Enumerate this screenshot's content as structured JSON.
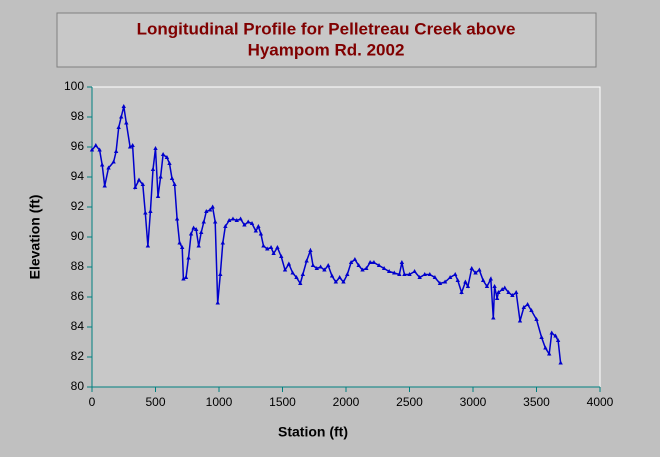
{
  "chart_data": {
    "type": "line",
    "title": [
      "Longitudinal Profile for Pelletreau Creek above",
      "Hyampom Rd. 2002"
    ],
    "x_label": "Station (ft)",
    "y_label": "Elevation (ft)",
    "xlim": [
      0,
      4000
    ],
    "xticks": [
      0,
      500,
      1000,
      1500,
      2000,
      2500,
      3000,
      3500,
      4000
    ],
    "ylim": [
      80,
      100
    ],
    "yticks": [
      80,
      82,
      84,
      86,
      88,
      90,
      92,
      94,
      96,
      98,
      100
    ],
    "grid": false,
    "series": [
      {
        "color": "#0000cc",
        "x": [
          0,
          30,
          60,
          80,
          100,
          130,
          170,
          190,
          210,
          230,
          250,
          270,
          300,
          320,
          340,
          370,
          400,
          420,
          440,
          460,
          480,
          500,
          520,
          540,
          560,
          590,
          610,
          630,
          650,
          670,
          690,
          710,
          720,
          740,
          760,
          780,
          800,
          820,
          840,
          860,
          880,
          900,
          930,
          950,
          970,
          990,
          1010,
          1030,
          1050,
          1080,
          1110,
          1140,
          1170,
          1200,
          1230,
          1260,
          1290,
          1310,
          1330,
          1350,
          1380,
          1410,
          1430,
          1460,
          1490,
          1520,
          1550,
          1580,
          1610,
          1640,
          1660,
          1690,
          1720,
          1740,
          1770,
          1800,
          1830,
          1860,
          1890,
          1920,
          1950,
          1980,
          2010,
          2040,
          2070,
          2100,
          2130,
          2160,
          2190,
          2220,
          2260,
          2300,
          2340,
          2380,
          2420,
          2440,
          2460,
          2500,
          2540,
          2580,
          2620,
          2660,
          2700,
          2740,
          2780,
          2820,
          2860,
          2880,
          2910,
          2940,
          2960,
          2990,
          3020,
          3050,
          3080,
          3110,
          3140,
          3160,
          3170,
          3190,
          3200,
          3230,
          3250,
          3280,
          3310,
          3340,
          3370,
          3400,
          3430,
          3460,
          3500,
          3540,
          3570,
          3600,
          3620,
          3650,
          3670,
          3690
        ],
        "values": [
          95.8,
          96.1,
          95.8,
          94.8,
          93.4,
          94.6,
          95.0,
          95.7,
          97.3,
          98.0,
          98.7,
          97.6,
          96.0,
          96.1,
          93.3,
          93.8,
          93.5,
          91.6,
          89.4,
          91.7,
          94.5,
          95.9,
          92.7,
          94.0,
          95.5,
          95.3,
          94.9,
          93.9,
          93.5,
          91.2,
          89.6,
          89.3,
          87.2,
          87.3,
          88.6,
          90.2,
          90.6,
          90.5,
          89.4,
          90.3,
          91.0,
          91.7,
          91.8,
          92.0,
          91.0,
          85.6,
          87.5,
          89.6,
          90.7,
          91.1,
          91.2,
          91.1,
          91.2,
          90.8,
          91.0,
          90.9,
          90.4,
          90.7,
          90.2,
          89.4,
          89.2,
          89.3,
          88.9,
          89.3,
          88.7,
          87.8,
          88.2,
          87.6,
          87.3,
          86.9,
          87.5,
          88.4,
          89.1,
          88.1,
          87.9,
          88.0,
          87.8,
          88.1,
          87.4,
          87.0,
          87.3,
          87.0,
          87.5,
          88.3,
          88.5,
          88.1,
          87.8,
          87.9,
          88.3,
          88.3,
          88.1,
          87.9,
          87.7,
          87.6,
          87.5,
          88.3,
          87.5,
          87.5,
          87.7,
          87.3,
          87.5,
          87.5,
          87.3,
          86.9,
          87.0,
          87.3,
          87.5,
          87.1,
          86.3,
          87.0,
          86.7,
          87.9,
          87.6,
          87.8,
          87.1,
          86.7,
          87.2,
          84.6,
          86.7,
          85.9,
          86.3,
          86.5,
          86.6,
          86.3,
          86.1,
          86.3,
          84.4,
          85.3,
          85.5,
          85.1,
          84.5,
          83.3,
          82.6,
          82.2,
          83.6,
          83.4,
          83.1,
          81.6
        ]
      }
    ]
  }
}
